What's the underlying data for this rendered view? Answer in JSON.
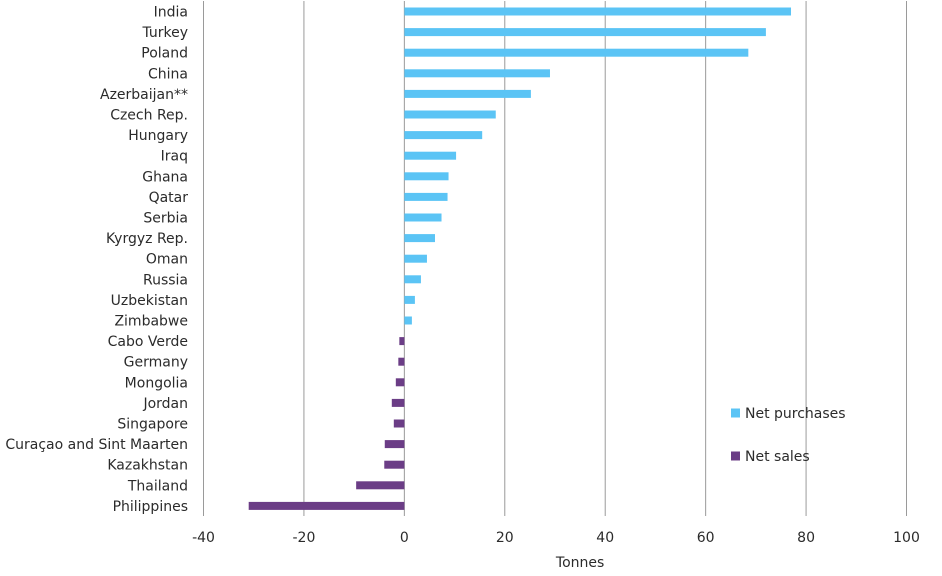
{
  "chart_data": {
    "type": "bar",
    "orientation": "horizontal",
    "title": "",
    "xlabel": "Tonnes",
    "ylabel": "",
    "xlim": [
      -40,
      100
    ],
    "xticks": [
      -40,
      -20,
      0,
      20,
      40,
      60,
      80,
      100
    ],
    "grid": "vertical",
    "legend_position": "bottom-right",
    "categories": [
      "India",
      "Turkey",
      "Poland",
      "China",
      "Azerbaijan**",
      "Czech Rep.",
      "Hungary",
      "Iraq",
      "Ghana",
      "Qatar",
      "Serbia",
      "Kyrgyz Rep.",
      "Oman",
      "Russia",
      "Uzbekistan",
      "Zimbabwe",
      "Cabo Verde",
      "Germany",
      "Mongolia",
      "Jordan",
      "Singapore",
      "Curaçao and Sint Maarten",
      "Kazakhstan",
      "Thailand",
      "Philippines"
    ],
    "values": [
      77,
      72,
      68.5,
      29,
      25.2,
      18.2,
      15.5,
      10.3,
      8.8,
      8.6,
      7.4,
      6.1,
      4.5,
      3.3,
      2.1,
      1.5,
      -1.0,
      -1.2,
      -1.7,
      -2.5,
      -2.1,
      -3.9,
      -4.0,
      -9.6,
      -31
    ],
    "series": [
      {
        "name": "Net purchases",
        "color": "#5bc4f5"
      },
      {
        "name": "Net sales",
        "color": "#6b3d86"
      }
    ],
    "colors": {
      "positive": "#5bc4f5",
      "negative": "#6b3d86",
      "grid": "#9a9a9a",
      "axis": "#9a9a9a"
    }
  }
}
